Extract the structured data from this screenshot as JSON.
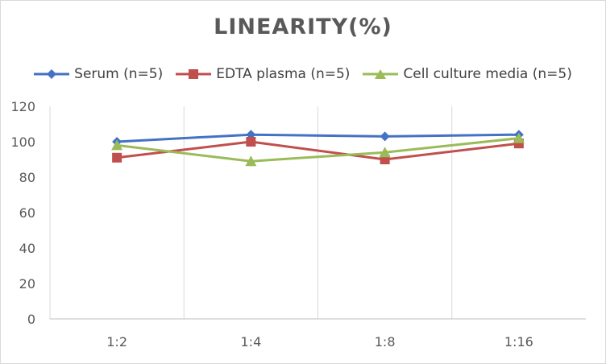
{
  "chart_data": {
    "type": "line",
    "title": "LINEARITY(%)",
    "categories": [
      "1:2",
      "1:4",
      "1:8",
      "1:16"
    ],
    "ylim": [
      0,
      120
    ],
    "yticks": [
      0,
      20,
      40,
      60,
      80,
      100,
      120
    ],
    "grid": "vertical",
    "legend_position": "top",
    "series": [
      {
        "name": "Serum (n=5)",
        "values": [
          100,
          104,
          103,
          104
        ],
        "color": "#4472c4",
        "marker": "diamond"
      },
      {
        "name": "EDTA plasma (n=5)",
        "values": [
          91,
          100,
          90,
          99
        ],
        "color": "#c0504d",
        "marker": "square"
      },
      {
        "name": "Cell culture media (n=5)",
        "values": [
          98,
          89,
          94,
          102
        ],
        "color": "#9bbb59",
        "marker": "triangle"
      }
    ]
  }
}
